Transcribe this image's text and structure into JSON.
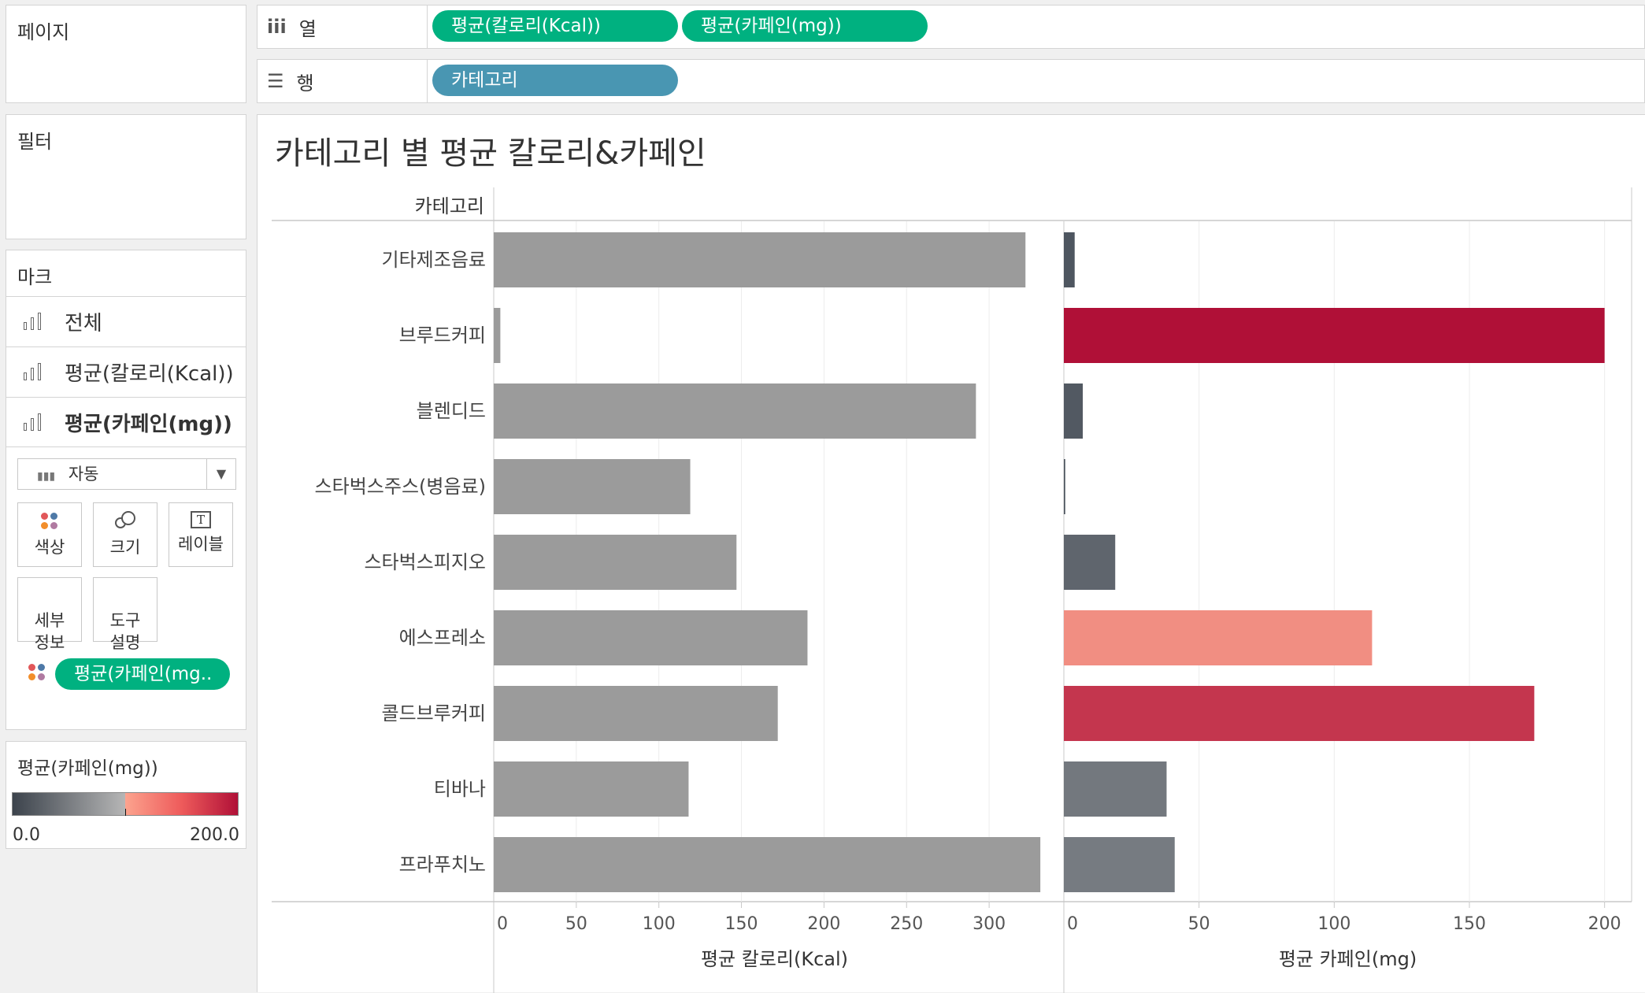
{
  "sidebar": {
    "pages_title": "페이지",
    "filters_title": "필터",
    "marks": {
      "title": "마크",
      "layers": [
        "전체",
        "평균(칼로리(Kcal))",
        "평균(카페인(mg))"
      ],
      "mark_type": "자동",
      "buttons": {
        "color": "색상",
        "size": "크기",
        "label": "레이블",
        "detail": "세부\n정보",
        "tooltip": "도구\n설명"
      },
      "color_pill": "평균(카페인(mg.."
    },
    "legend": {
      "title": "평균(카페인(mg))",
      "min": "0.0",
      "max": "200.0"
    }
  },
  "shelves": {
    "columns_label": "열",
    "rows_label": "행",
    "column_pills": [
      "평균(칼로리(Kcal))",
      "평균(카페인(mg))"
    ],
    "row_pills": [
      "카테고리"
    ]
  },
  "colors": {
    "green_pill": "#00b180",
    "blue_pill": "#4996b2",
    "calorie_bar": "#9b9b9b"
  },
  "chart_data": {
    "type": "bar",
    "orientation": "horizontal",
    "title": "카테고리 별 평균 칼로리&카페인",
    "row_header": "카테고리",
    "categories": [
      "기타제조음료",
      "브루드커피",
      "블렌디드",
      "스타벅스주스(병음료)",
      "스타벅스피지오",
      "에스프레소",
      "콜드브루커피",
      "티바나",
      "프라푸치노"
    ],
    "series": [
      {
        "name": "평균 칼로리(Kcal)",
        "values": [
          322,
          4,
          292,
          119,
          147,
          190,
          172,
          118,
          331
        ],
        "xlim": [
          0,
          340
        ],
        "ticks": [
          0,
          50,
          100,
          150,
          200,
          250,
          300
        ],
        "color": "#9b9b9b"
      },
      {
        "name": "평균 카페인(mg)",
        "values": [
          4,
          200,
          7,
          0.5,
          19,
          114,
          174,
          38,
          41
        ],
        "xlim": [
          0,
          210
        ],
        "ticks": [
          0,
          50,
          100,
          150,
          200
        ],
        "color_scale": {
          "min": 0,
          "mid": 100,
          "max": 200,
          "stops": [
            "#4a525c",
            "#b6b6b6",
            "#fca38e",
            "#b01037"
          ]
        }
      }
    ],
    "grid": true
  }
}
